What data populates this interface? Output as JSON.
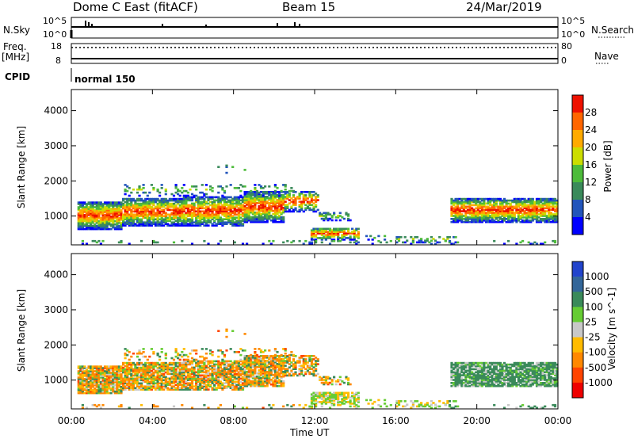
{
  "header": {
    "site": "Dome C East (fitACF)",
    "beam": "Beam 15",
    "date": "24/Mar/2019"
  },
  "top_panels": {
    "nsky_label": "N.Sky",
    "nsky_top": "10^5",
    "nsky_bottom": "10^0",
    "nsearch_label": "N.Search",
    "nsearch_top": "10^5",
    "nsearch_bottom": "10^0",
    "freq_label": "Freq.",
    "freq_unit": "[MHz]",
    "freq_top": "18",
    "freq_bottom": "8",
    "nave_label": "Nave",
    "nave_top": "80",
    "nave_bottom": "0",
    "cpid_label": "CPID",
    "cpid_value": "normal 150"
  },
  "chart_data": [
    {
      "type": "heatmap",
      "name": "power",
      "ylabel": "Slant Range [km]",
      "ylim": [
        180,
        4600
      ],
      "yticks": [
        "1000",
        "2000",
        "3000",
        "4000"
      ],
      "colorbar_label": "Power [dB]",
      "colorbar_ticks": [
        "4",
        "8",
        "12",
        "16",
        "20",
        "24",
        "28"
      ],
      "colors": [
        "#0000ff",
        "#2255bb",
        "#3a8a5a",
        "#4dbb3a",
        "#ccdd00",
        "#ffaa00",
        "#ff6600",
        "#ee1100"
      ]
    },
    {
      "type": "heatmap",
      "name": "velocity",
      "xlabel": "Time UT",
      "ylabel": "Slant Range [km]",
      "ylim": [
        180,
        4600
      ],
      "yticks": [
        "1000",
        "2000",
        "3000",
        "4000"
      ],
      "xticks": [
        "00:00",
        "04:00",
        "08:00",
        "12:00",
        "16:00",
        "20:00",
        "00:00"
      ],
      "colorbar_label": "Velocity [m s^-1]",
      "colorbar_ticks": [
        "1000",
        "500",
        "100",
        "25",
        "-25",
        "-100",
        "-500",
        "-1000"
      ],
      "colors": [
        "#2244cc",
        "#336699",
        "#3a8a5a",
        "#66cc33",
        "#c8c8c8",
        "#ffbb00",
        "#ff8800",
        "#ff4400",
        "#ee0000"
      ]
    }
  ]
}
